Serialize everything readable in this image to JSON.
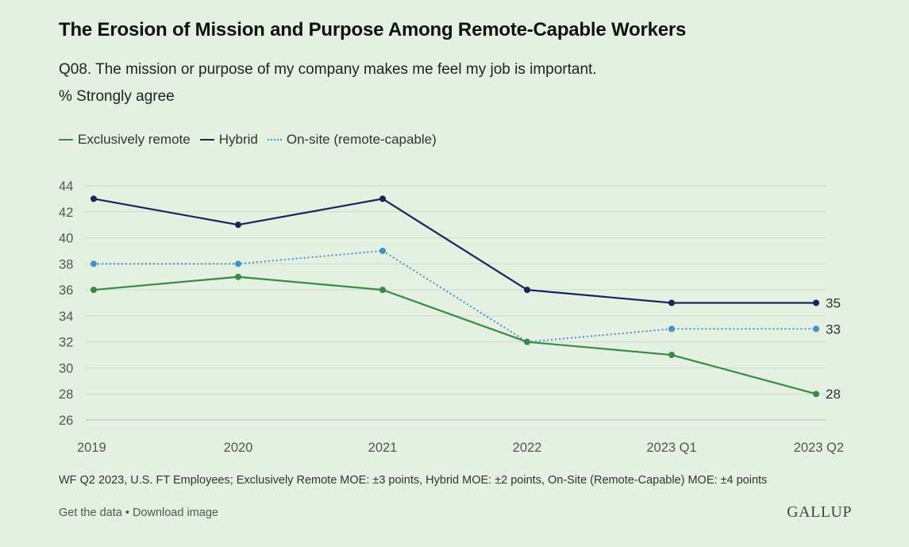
{
  "header": {
    "title": "The Erosion of Mission and Purpose Among Remote-Capable Workers",
    "subtitle": "Q08. The mission or purpose of my company makes me feel my job is important.",
    "measure": "% Strongly agree"
  },
  "chart_data": {
    "type": "line",
    "categories": [
      "2019",
      "2020",
      "2021",
      "2022",
      "2023 Q1",
      "2023 Q2"
    ],
    "ylim": [
      26,
      44
    ],
    "yticks": [
      26,
      28,
      30,
      32,
      34,
      36,
      38,
      40,
      42,
      44
    ],
    "grid": true,
    "legend_placement": "top-left",
    "series": [
      {
        "name": "Exclusively remote",
        "values": [
          36,
          37,
          36,
          32,
          31,
          28
        ],
        "color": "#3a8a47",
        "style": "solid",
        "end_label": "28"
      },
      {
        "name": "Hybrid",
        "values": [
          43,
          41,
          43,
          36,
          35,
          35
        ],
        "color": "#17255e",
        "style": "solid",
        "end_label": "35"
      },
      {
        "name": "On-site (remote-capable)",
        "values": [
          38,
          38,
          39,
          32,
          33,
          33
        ],
        "color": "#4a8fc4",
        "style": "dotted",
        "end_label": "33"
      }
    ]
  },
  "source_note": "WF Q2 2023, U.S. FT Employees; Exclusively Remote MOE: ±3 points, Hybrid MOE: ±2 points, On-Site (Remote-Capable) MOE: ±4 points",
  "footer": {
    "get_data": "Get the data",
    "separator": " • ",
    "download": "Download image",
    "brand": "GALLUP"
  }
}
